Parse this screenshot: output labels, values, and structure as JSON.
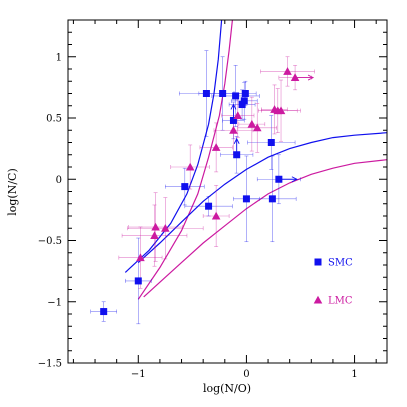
{
  "chart_data": {
    "type": "scatter",
    "xlabel": "log(N/O)",
    "ylabel": "log(N/C)",
    "xlim": [
      -1.65,
      1.3
    ],
    "ylim": [
      -1.5,
      1.3
    ],
    "xticks": [
      -1,
      0,
      1
    ],
    "xtick_labels": [
      "−1",
      "0",
      "1"
    ],
    "yticks": [
      -1.5,
      -1,
      -0.5,
      0,
      0.5,
      1
    ],
    "ytick_labels": [
      "−1.5",
      "−1",
      "−0.5",
      "0",
      "0.5",
      "1"
    ],
    "legend_position": "right-center",
    "series": [
      {
        "name": "SMC",
        "marker": "square",
        "color": "#1010ee",
        "points": [
          {
            "x": -1.32,
            "y": -1.08,
            "xerr": 0.12,
            "yerr": 0.08
          },
          {
            "x": -1.0,
            "y": -0.83,
            "xerr": 0.12,
            "yerr": 0.35
          },
          {
            "x": -0.57,
            "y": -0.06,
            "xerr": 0.18,
            "yerr": 0.15
          },
          {
            "x": -0.37,
            "y": 0.7,
            "xerr": 0.25,
            "yerr": 0.35
          },
          {
            "x": -0.35,
            "y": -0.22,
            "xerr": 0.22,
            "yerr": 0.08
          },
          {
            "x": -0.22,
            "y": 0.7,
            "xerr": 0.22,
            "yerr": 0.3
          },
          {
            "x": -0.12,
            "y": 0.48,
            "xerr": 0.1,
            "yerr": 0.15
          },
          {
            "x": -0.1,
            "y": 0.68,
            "xerr": 0.22,
            "yerr": 0.25
          },
          {
            "x": -0.09,
            "y": 0.2,
            "xerr": 0.15,
            "yerr": 0.15
          },
          {
            "x": -0.04,
            "y": 0.61,
            "xerr": 0.12,
            "yerr": 0.12
          },
          {
            "x": -0.02,
            "y": 0.64,
            "xerr": 0.12,
            "yerr": 0.15
          },
          {
            "x": -0.01,
            "y": 0.7,
            "xerr": 0.1,
            "yerr": 0.1
          },
          {
            "x": 0.0,
            "y": -0.16,
            "xerr": 0.12,
            "yerr": 0.35
          },
          {
            "x": 0.23,
            "y": 0.3,
            "xerr": 0.22,
            "yerr": 0.22
          },
          {
            "x": 0.24,
            "y": -0.16,
            "xerr": 0.22,
            "yerr": 0.35
          },
          {
            "x": 0.3,
            "y": 0.0,
            "xerr": 0.2,
            "yerr": 0.2
          }
        ],
        "limits": [
          {
            "x": -0.09,
            "y": 0.2,
            "dir": "up"
          },
          {
            "x": -0.12,
            "y": 0.48,
            "dir": "up"
          },
          {
            "x": 0.3,
            "y": 0.0,
            "dir": "right"
          }
        ]
      },
      {
        "name": "LMC",
        "marker": "triangle",
        "color": "#cc1aa0",
        "points": [
          {
            "x": -0.98,
            "y": -0.64,
            "xerr": 0.2,
            "yerr": 0.25
          },
          {
            "x": -0.85,
            "y": -0.46,
            "xerr": 0.3,
            "yerr": 0.25
          },
          {
            "x": -0.84,
            "y": -0.39,
            "xerr": 0.25,
            "yerr": 0.28
          },
          {
            "x": -0.75,
            "y": -0.4,
            "xerr": 0.35,
            "yerr": 0.25
          },
          {
            "x": -0.52,
            "y": 0.1,
            "xerr": 0.18,
            "yerr": 0.18
          },
          {
            "x": -0.28,
            "y": -0.3,
            "xerr": 0.12,
            "yerr": 0.25
          },
          {
            "x": -0.28,
            "y": 0.26,
            "xerr": 0.15,
            "yerr": 0.2
          },
          {
            "x": -0.12,
            "y": 0.4,
            "xerr": 0.18,
            "yerr": 0.2
          },
          {
            "x": -0.08,
            "y": 0.52,
            "xerr": 0.15,
            "yerr": 0.18
          },
          {
            "x": 0.05,
            "y": 0.45,
            "xerr": 0.12,
            "yerr": 0.22
          },
          {
            "x": 0.1,
            "y": 0.42,
            "xerr": 0.18,
            "yerr": 0.2
          },
          {
            "x": 0.26,
            "y": 0.57,
            "xerr": 0.12,
            "yerr": 0.2
          },
          {
            "x": 0.29,
            "y": 0.56,
            "xerr": 0.18,
            "yerr": 0.18
          },
          {
            "x": 0.32,
            "y": 0.56,
            "xerr": 0.18,
            "yerr": 0.25
          },
          {
            "x": 0.38,
            "y": 0.88,
            "xerr": 0.25,
            "yerr": 0.12
          },
          {
            "x": 0.45,
            "y": 0.83,
            "xerr": 0.15,
            "yerr": 0.1
          }
        ],
        "limits": [
          {
            "x": 0.45,
            "y": 0.83,
            "dir": "right"
          }
        ]
      }
    ],
    "curves": [
      {
        "color": "#1010ee",
        "points": [
          [
            -1.12,
            -0.76
          ],
          [
            -0.9,
            -0.58
          ],
          [
            -0.7,
            -0.36
          ],
          [
            -0.55,
            -0.12
          ],
          [
            -0.45,
            0.12
          ],
          [
            -0.35,
            0.45
          ],
          [
            -0.3,
            0.7
          ],
          [
            -0.26,
            0.98
          ],
          [
            -0.23,
            1.3
          ]
        ]
      },
      {
        "color": "#cc1aa0",
        "points": [
          [
            -1.0,
            -0.98
          ],
          [
            -0.8,
            -0.72
          ],
          [
            -0.6,
            -0.42
          ],
          [
            -0.45,
            -0.12
          ],
          [
            -0.35,
            0.18
          ],
          [
            -0.25,
            0.52
          ],
          [
            -0.2,
            0.78
          ],
          [
            -0.16,
            1.05
          ],
          [
            -0.13,
            1.3
          ]
        ]
      },
      {
        "color": "#1010ee",
        "points": [
          [
            -1.0,
            -0.68
          ],
          [
            -0.8,
            -0.52
          ],
          [
            -0.6,
            -0.35
          ],
          [
            -0.4,
            -0.18
          ],
          [
            -0.2,
            -0.04
          ],
          [
            0.0,
            0.08
          ],
          [
            0.2,
            0.18
          ],
          [
            0.4,
            0.25
          ],
          [
            0.6,
            0.3
          ],
          [
            0.8,
            0.34
          ],
          [
            1.0,
            0.36
          ],
          [
            1.3,
            0.38
          ]
        ]
      },
      {
        "color": "#cc1aa0",
        "points": [
          [
            -0.95,
            -0.96
          ],
          [
            -0.8,
            -0.84
          ],
          [
            -0.6,
            -0.68
          ],
          [
            -0.4,
            -0.52
          ],
          [
            -0.2,
            -0.38
          ],
          [
            0.0,
            -0.24
          ],
          [
            0.2,
            -0.12
          ],
          [
            0.4,
            -0.03
          ],
          [
            0.6,
            0.04
          ],
          [
            0.8,
            0.09
          ],
          [
            1.0,
            0.13
          ],
          [
            1.3,
            0.16
          ]
        ]
      }
    ]
  }
}
